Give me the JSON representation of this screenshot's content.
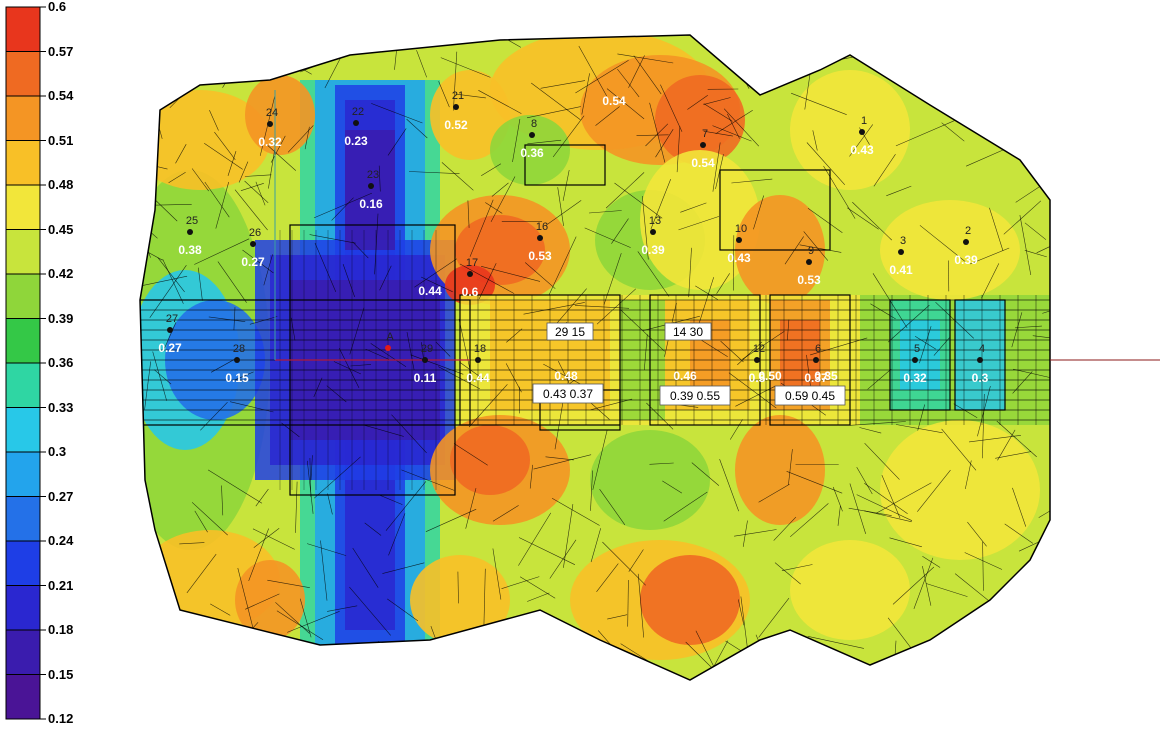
{
  "chart_data": {
    "type": "heatmap",
    "colorbar": {
      "ticks": [
        "0.6",
        "0.57",
        "0.54",
        "0.51",
        "0.48",
        "0.45",
        "0.42",
        "0.39",
        "0.36",
        "0.33",
        "0.3",
        "0.27",
        "0.24",
        "0.21",
        "0.18",
        "0.15",
        "0.12"
      ],
      "colors": [
        "#e8361d",
        "#ef6a22",
        "#f49524",
        "#f8c027",
        "#f2e63a",
        "#c8e43c",
        "#8fd63a",
        "#34c847",
        "#2fd6a3",
        "#28c8e8",
        "#23a4ec",
        "#2471e8",
        "#1e3ee6",
        "#2a27d0",
        "#3a1cae",
        "#4a1496"
      ]
    },
    "points": [
      {
        "id": "1",
        "value": "0.43"
      },
      {
        "id": "2",
        "value": "0.39"
      },
      {
        "id": "3",
        "value": "0.41"
      },
      {
        "id": "4",
        "value": "0.3"
      },
      {
        "id": "5",
        "value": "0.32"
      },
      {
        "id": "6",
        "value": "0.37"
      },
      {
        "id": "7",
        "value": "0.54"
      },
      {
        "id": "8",
        "value": "0.36"
      },
      {
        "id": "9",
        "value": "0.53"
      },
      {
        "id": "10",
        "value": "0.43"
      },
      {
        "id": "12",
        "value": "0.5"
      },
      {
        "id": "13",
        "value": "0.39"
      },
      {
        "id": "16",
        "value": "0.53"
      },
      {
        "id": "17",
        "value": "0.6"
      },
      {
        "id": "18",
        "value": "0.44"
      },
      {
        "id": "21",
        "value": "0.52"
      },
      {
        "id": "22",
        "value": "0.23"
      },
      {
        "id": "23",
        "value": "0.16"
      },
      {
        "id": "24",
        "value": "0.32"
      },
      {
        "id": "25",
        "value": "0.38"
      },
      {
        "id": "26",
        "value": "0.27"
      },
      {
        "id": "27",
        "value": "0.27"
      },
      {
        "id": "28",
        "value": "0.15"
      },
      {
        "id": "29",
        "value": "0.11"
      },
      {
        "id": "A",
        "value": ""
      }
    ],
    "extra_values": [
      "0.54",
      "0.44",
      "0.48",
      "0.46",
      "0.50",
      "0.35"
    ],
    "boxes": [
      {
        "top": "29 15",
        "bottom": "0.43  0.37"
      },
      {
        "top": "14 30",
        "bottom": "0.39  0.55"
      },
      {
        "top": "",
        "bottom": "0.59  0.45"
      }
    ]
  }
}
